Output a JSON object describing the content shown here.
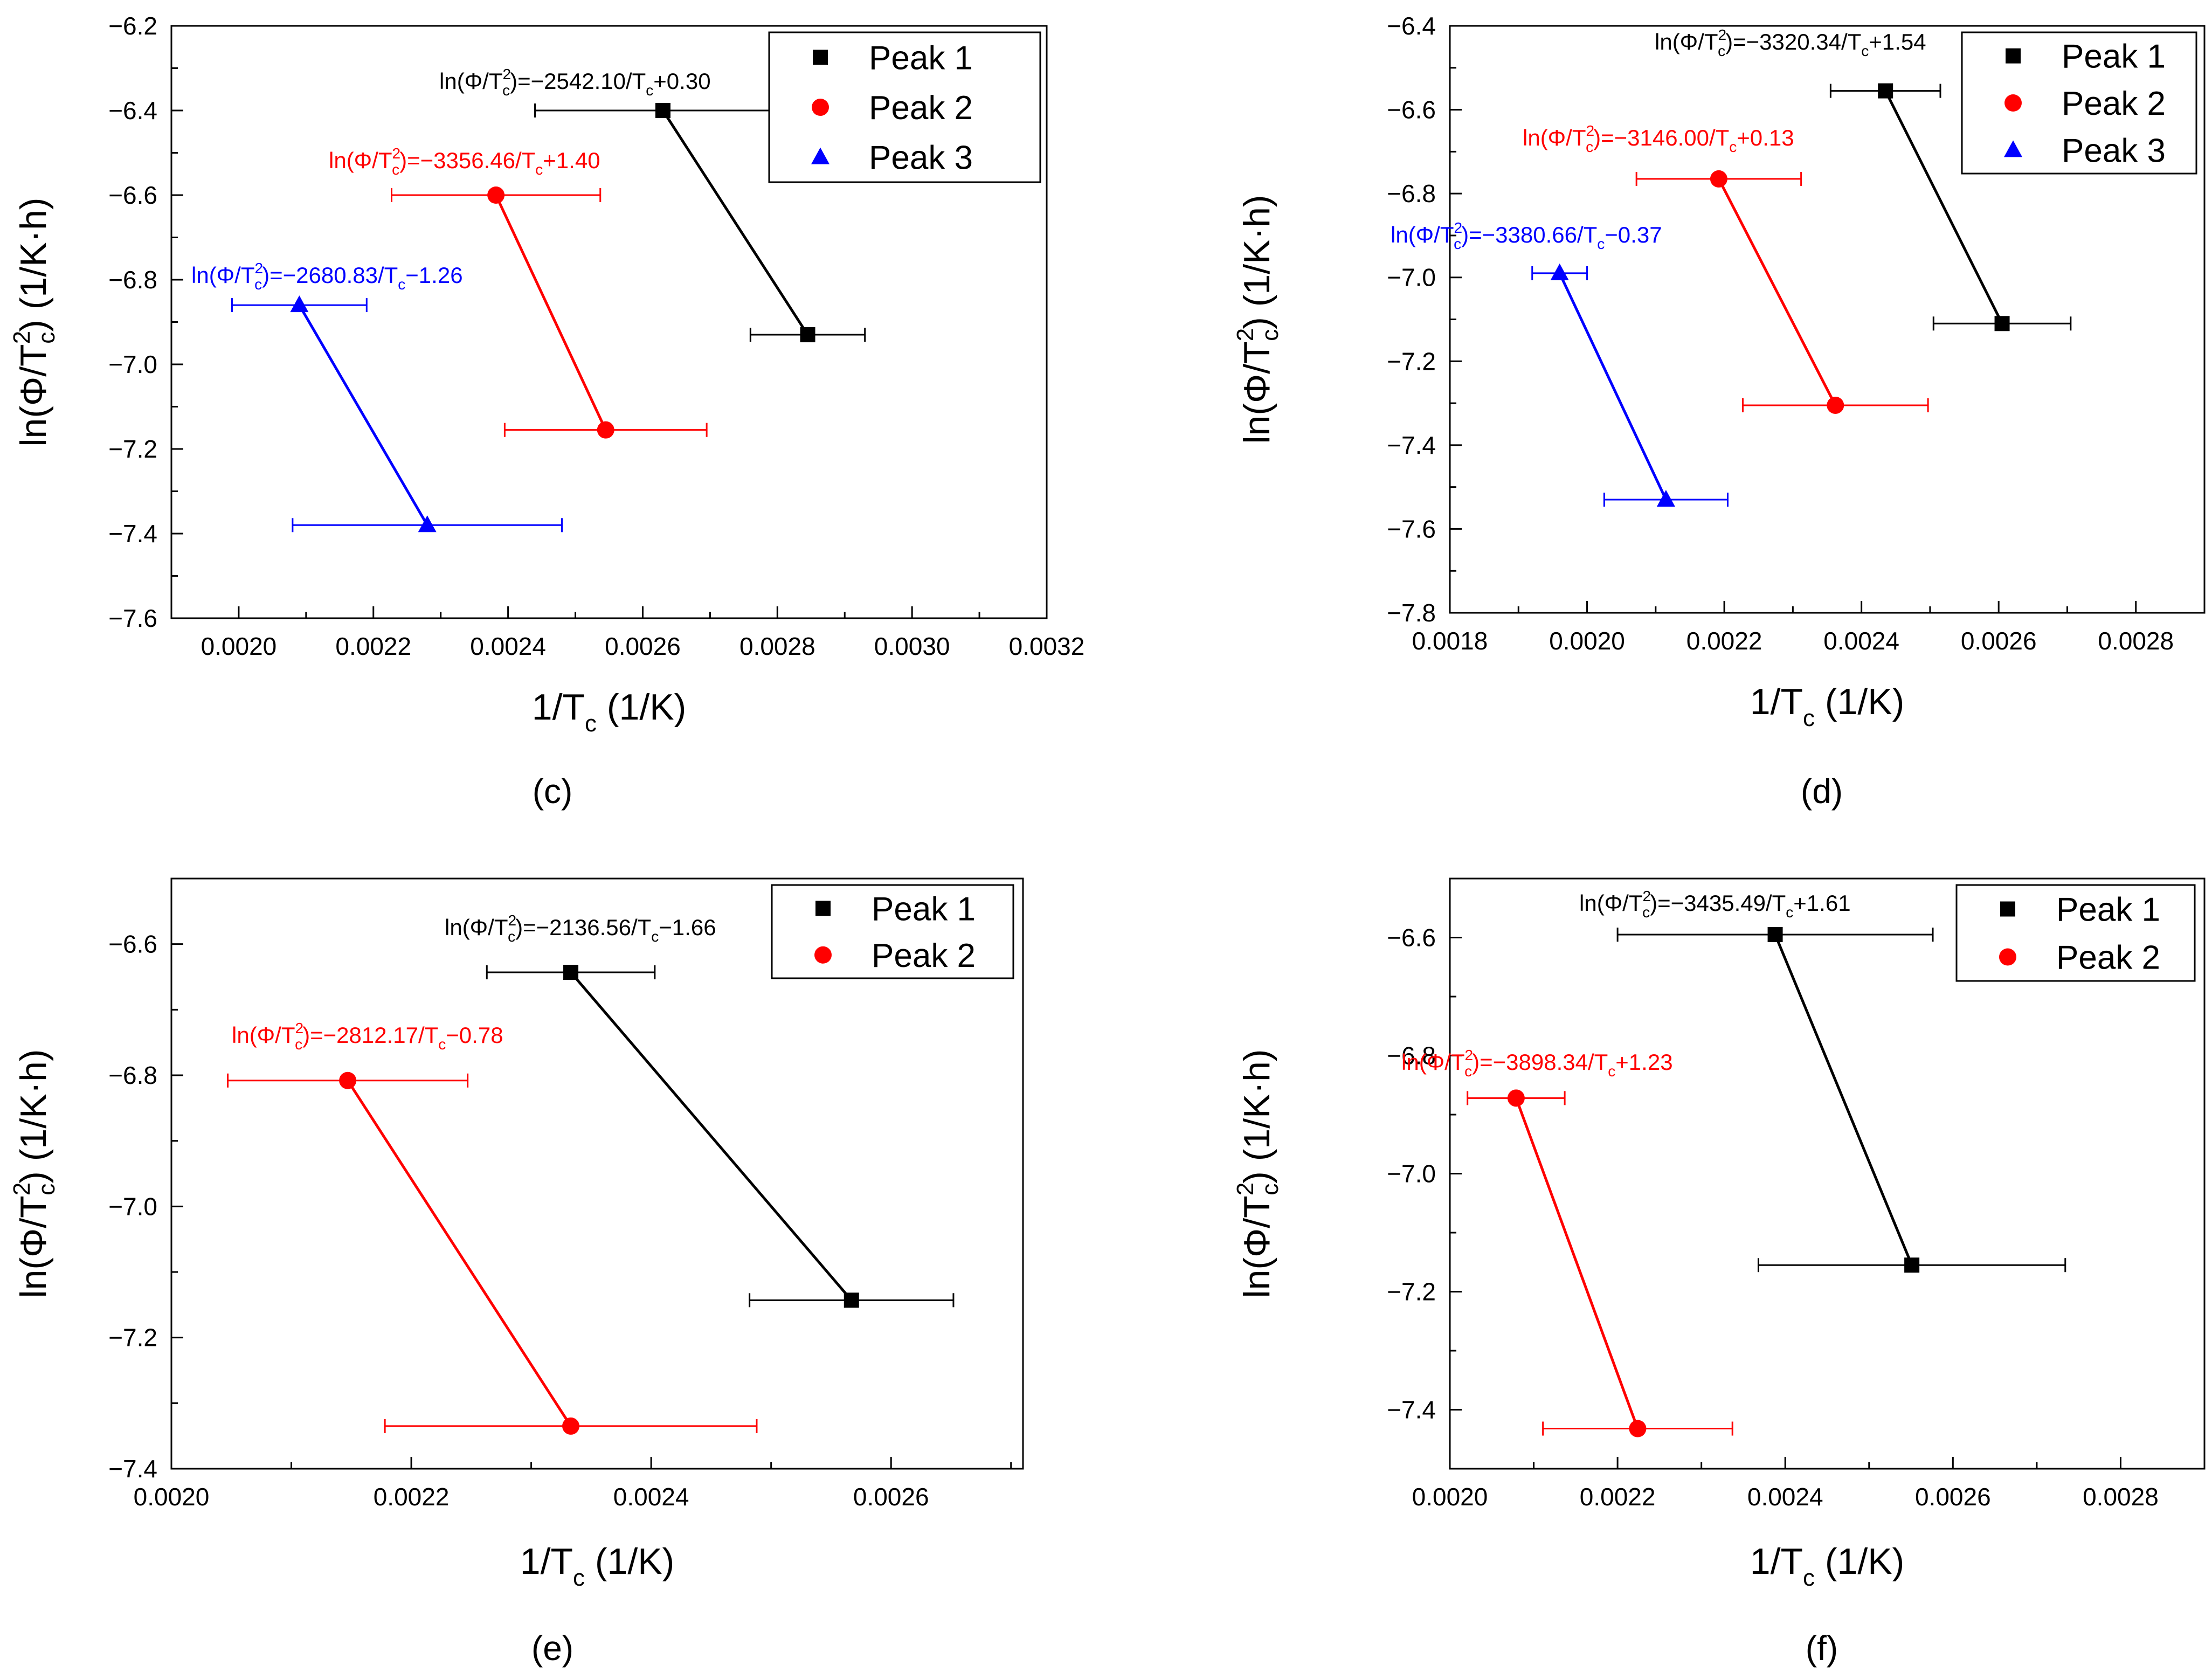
{
  "chart_data": [
    {
      "panel": "c",
      "type": "line",
      "xlabel": "1/Tc (1/K)",
      "ylabel": "ln(Φ/Tc²) (1/K·h)",
      "xlim": [
        0.0019,
        0.0032
      ],
      "ylim": [
        -7.6,
        -6.2
      ],
      "xticks": [
        0.002,
        0.0022,
        0.0024,
        0.0026,
        0.0028,
        0.003,
        0.0032
      ],
      "yticks": [
        -7.6,
        -7.4,
        -7.2,
        -7.0,
        -6.8,
        -6.6,
        -6.4,
        -6.2
      ],
      "xtick_labels": [
        "0.0020",
        "0.0022",
        "0.0024",
        "0.0026",
        "0.0028",
        "0.0030",
        "0.0032"
      ],
      "ytick_labels": [
        "−7.6",
        "−7.4",
        "−7.2",
        "−7.0",
        "−6.8",
        "−6.6",
        "−6.4",
        "−6.2"
      ],
      "legend_position": "top-right",
      "series": [
        {
          "name": "Peak 1",
          "color": "#000000",
          "marker": "square",
          "x": [
            0.00263,
            0.002845
          ],
          "y": [
            -6.4,
            -6.93
          ],
          "xerr": [
            0.00019,
            8.5e-05
          ],
          "equation": {
            "prefix": "ln(Φ/T",
            "rest": "=−2542.10/T",
            "suffix": "+0.30"
          }
        },
        {
          "name": "Peak 2",
          "color": "#ff0000",
          "marker": "circle",
          "x": [
            0.002382,
            0.002545
          ],
          "y": [
            -6.6,
            -7.155
          ],
          "xerr": [
            0.000155,
            0.00015
          ],
          "equation": {
            "prefix": "ln(Φ/T",
            "rest": "=−3356.46/T",
            "suffix": "+1.40"
          }
        },
        {
          "name": "Peak 3",
          "color": "#0000ff",
          "marker": "triangle",
          "x": [
            0.00209,
            0.00228
          ],
          "y": [
            -6.86,
            -7.38
          ],
          "xerr": [
            0.0001,
            0.0002
          ],
          "equation": {
            "prefix": "ln(Φ/T",
            "rest": "=−2680.83/T",
            "suffix": "−1.26"
          }
        }
      ]
    },
    {
      "panel": "d",
      "type": "line",
      "xlabel": "1/Tc (1/K)",
      "ylabel": "ln(Φ/Tc²) (1/K·h)",
      "xlim": [
        0.0018,
        0.0029
      ],
      "ylim": [
        -7.8,
        -6.4
      ],
      "xticks": [
        0.0018,
        0.002,
        0.0022,
        0.0024,
        0.0026,
        0.0028
      ],
      "yticks": [
        -7.8,
        -7.6,
        -7.4,
        -7.2,
        -7.0,
        -6.8,
        -6.6,
        -6.4
      ],
      "xtick_labels": [
        "0.0018",
        "0.0020",
        "0.0022",
        "0.0024",
        "0.0026",
        "0.0028"
      ],
      "ytick_labels": [
        "−7.8",
        "−7.6",
        "−7.4",
        "−7.2",
        "−7.0",
        "−6.8",
        "−6.6",
        "−6.4"
      ],
      "legend_position": "top-right",
      "series": [
        {
          "name": "Peak 1",
          "color": "#000000",
          "marker": "square",
          "x": [
            0.002435,
            0.002605
          ],
          "y": [
            -6.555,
            -7.11
          ],
          "xerr": [
            8e-05,
            0.0001
          ],
          "equation": {
            "prefix": "ln(Φ/T",
            "rest": "=−3320.34/T",
            "suffix": "+1.54"
          }
        },
        {
          "name": "Peak 2",
          "color": "#ff0000",
          "marker": "circle",
          "x": [
            0.002192,
            0.002362
          ],
          "y": [
            -6.765,
            -7.305
          ],
          "xerr": [
            0.00012,
            0.000135
          ],
          "equation": {
            "prefix": "ln(Φ/T",
            "rest": "=−3146.00/T",
            "suffix": "+0.13"
          }
        },
        {
          "name": "Peak 3",
          "color": "#0000ff",
          "marker": "triangle",
          "x": [
            0.00196,
            0.002115
          ],
          "y": [
            -6.99,
            -7.53
          ],
          "xerr": [
            4e-05,
            9e-05
          ],
          "equation": {
            "prefix": "ln(Φ/T",
            "rest": "=−3380.66/T",
            "suffix": "−0.37"
          }
        }
      ]
    },
    {
      "panel": "e",
      "type": "line",
      "xlabel": "1/Tc (1/K)",
      "ylabel": "ln(Φ/Tc²) (1/K·h)",
      "xlim": [
        0.002,
        0.00271
      ],
      "ylim": [
        -7.4,
        -6.5
      ],
      "xticks": [
        0.002,
        0.0022,
        0.0024,
        0.0026
      ],
      "yticks": [
        -7.4,
        -7.2,
        -7.0,
        -6.8,
        -6.6
      ],
      "xtick_labels": [
        "0.0020",
        "0.0022",
        "0.0024",
        "0.0026"
      ],
      "ytick_labels": [
        "−7.4",
        "−7.2",
        "−7.0",
        "−6.8",
        "−6.6"
      ],
      "legend_position": "top-right",
      "series": [
        {
          "name": "Peak 1",
          "color": "#000000",
          "marker": "square",
          "x": [
            0.002333,
            0.002567
          ],
          "y": [
            -6.643,
            -7.143
          ],
          "xerr": [
            7e-05,
            8.5e-05
          ],
          "equation": {
            "prefix": "ln(Φ/T",
            "rest": "=−2136.56/T",
            "suffix": "−1.66"
          }
        },
        {
          "name": "Peak 2",
          "color": "#ff0000",
          "marker": "circle",
          "x": [
            0.002147,
            0.002333
          ],
          "y": [
            -6.808,
            -7.335
          ],
          "xerr": [
            0.0001,
            0.000155
          ],
          "equation": {
            "prefix": "ln(Φ/T",
            "rest": "=−2812.17/T",
            "suffix": "−0.78"
          }
        }
      ]
    },
    {
      "panel": "f",
      "type": "line",
      "xlabel": "1/Tc (1/K)",
      "ylabel": "ln(Φ/Tc²) (1/K·h)",
      "xlim": [
        0.002,
        0.0029
      ],
      "ylim": [
        -7.5,
        -6.5
      ],
      "xticks": [
        0.002,
        0.0022,
        0.0024,
        0.0026,
        0.0028
      ],
      "yticks": [
        -7.4,
        -7.2,
        -7.0,
        -6.8,
        -6.6
      ],
      "xtick_labels": [
        "0.0020",
        "0.0022",
        "0.0024",
        "0.0026",
        "0.0028"
      ],
      "ytick_labels": [
        "−7.4",
        "−7.2",
        "−7.0",
        "−6.8",
        "−6.6"
      ],
      "legend_position": "top-right",
      "series": [
        {
          "name": "Peak 1",
          "color": "#000000",
          "marker": "square",
          "x": [
            0.002388,
            0.002551
          ],
          "y": [
            -6.595,
            -7.155
          ],
          "xerr": [
            0.000188,
            0.000183
          ],
          "equation": {
            "prefix": "ln(Φ/T",
            "rest": "=−3435.49/T",
            "suffix": "+1.61"
          }
        },
        {
          "name": "Peak 2",
          "color": "#ff0000",
          "marker": "circle",
          "x": [
            0.002079,
            0.002224
          ],
          "y": [
            -6.872,
            -7.432
          ],
          "xerr": [
            5.8e-05,
            0.000113
          ],
          "equation": {
            "prefix": "ln(Φ/T",
            "rest": "=−3898.34/T",
            "suffix": "+1.23"
          }
        }
      ]
    }
  ],
  "panel_labels": [
    "(c)",
    "(d)",
    "(e)",
    "(f)"
  ]
}
